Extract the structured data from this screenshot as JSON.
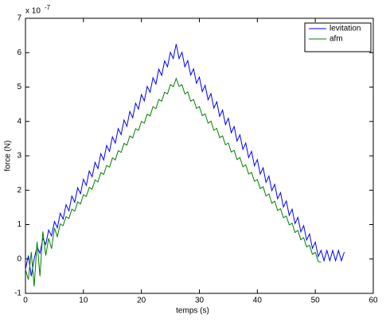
{
  "chart_data": {
    "type": "line",
    "xlabel": "temps (s)",
    "ylabel": "force (N)",
    "y_multiplier": "x 10",
    "y_multiplier_exponent": "-7",
    "xlim": [
      0,
      60
    ],
    "xticks": [
      0,
      10,
      20,
      30,
      40,
      50,
      60
    ],
    "ylim": [
      -1,
      7
    ],
    "yticks": [
      -1,
      0,
      1,
      2,
      3,
      4,
      5,
      6,
      7
    ],
    "grid": false,
    "legend": "top-right",
    "series": [
      {
        "name": "levitation",
        "color": "#0000ff",
        "x": [
          0,
          0.5,
          1,
          1.5,
          2,
          2.5,
          3,
          3.5,
          4,
          4.5,
          5,
          5.5,
          6,
          6.5,
          7,
          7.5,
          8,
          8.5,
          9,
          9.5,
          10,
          10.5,
          11,
          11.5,
          12,
          12.5,
          13,
          13.5,
          14,
          14.5,
          15,
          15.5,
          16,
          16.5,
          17,
          17.5,
          18,
          18.5,
          19,
          19.5,
          20,
          20.5,
          21,
          21.5,
          22,
          22.5,
          23,
          23.5,
          24,
          24.5,
          25,
          25.5,
          26,
          26.5,
          27,
          27.5,
          28,
          28.5,
          29,
          29.5,
          30,
          30.5,
          31,
          31.5,
          32,
          32.5,
          33,
          33.5,
          34,
          34.5,
          35,
          35.5,
          36,
          36.5,
          37,
          37.5,
          38,
          38.5,
          39,
          39.5,
          40,
          40.5,
          41,
          41.5,
          42,
          42.5,
          43,
          43.5,
          44,
          44.5,
          45,
          45.5,
          46,
          46.5,
          47,
          47.5,
          48,
          48.5,
          49,
          49.5,
          50,
          50.5,
          51,
          51.5,
          52,
          52.5,
          53,
          53.5,
          54,
          54.5,
          55
        ],
        "values": [
          -0.3,
          0.1,
          -0.5,
          0.0,
          0.35,
          0.17,
          0.6,
          0.42,
          0.84,
          0.67,
          1.09,
          0.91,
          1.33,
          1.16,
          1.58,
          1.4,
          1.83,
          1.65,
          2.07,
          1.9,
          2.32,
          2.14,
          2.56,
          2.39,
          2.81,
          2.63,
          3.06,
          2.88,
          3.3,
          3.13,
          3.55,
          3.37,
          3.79,
          3.62,
          4.04,
          3.86,
          4.29,
          4.11,
          4.53,
          4.36,
          4.78,
          4.6,
          5.02,
          4.85,
          5.27,
          5.09,
          5.52,
          5.34,
          5.76,
          5.59,
          6.01,
          5.83,
          6.25,
          5.83,
          6.01,
          5.59,
          5.77,
          5.35,
          5.53,
          5.11,
          5.29,
          4.87,
          5.05,
          4.63,
          4.81,
          4.39,
          4.57,
          4.15,
          4.33,
          3.91,
          4.09,
          3.67,
          3.85,
          3.43,
          3.61,
          3.19,
          3.37,
          2.95,
          3.13,
          2.71,
          2.89,
          2.47,
          2.65,
          2.23,
          2.41,
          1.99,
          2.17,
          1.75,
          1.93,
          1.51,
          1.69,
          1.27,
          1.45,
          1.03,
          1.21,
          0.79,
          0.97,
          0.55,
          0.73,
          0.31,
          0.49,
          0.07,
          0.25,
          -0.05,
          0.25,
          -0.05,
          0.25,
          -0.05,
          0.25,
          -0.05,
          0.2
        ]
      },
      {
        "name": "afm",
        "color": "#008000",
        "x": [
          0,
          0.5,
          1,
          1.5,
          2,
          2.5,
          3,
          3.5,
          4,
          4.5,
          5,
          5.5,
          6,
          6.5,
          7,
          7.5,
          8,
          8.5,
          9,
          9.5,
          10,
          10.5,
          11,
          11.5,
          12,
          12.5,
          13,
          13.5,
          14,
          14.5,
          15,
          15.5,
          16,
          16.5,
          17,
          17.5,
          18,
          18.5,
          19,
          19.5,
          20,
          20.5,
          21,
          21.5,
          22,
          22.5,
          23,
          23.5,
          24,
          24.5,
          25,
          25.5,
          26,
          26.5,
          27,
          27.5,
          28,
          28.5,
          29,
          29.5,
          30,
          30.5,
          31,
          31.5,
          32,
          32.5,
          33,
          33.5,
          34,
          34.5,
          35,
          35.5,
          36,
          36.5,
          37,
          37.5,
          38,
          38.5,
          39,
          39.5,
          40,
          40.5,
          41,
          41.5,
          42,
          42.5,
          43,
          43.5,
          44,
          44.5,
          45,
          45.5,
          46,
          46.5,
          47,
          47.5,
          48,
          48.5,
          49,
          49.5,
          50,
          50.5,
          51
        ],
        "values": [
          -0.3,
          -0.6,
          0.2,
          -0.8,
          0.5,
          -0.5,
          0.8,
          0.1,
          0.6,
          0.3,
          0.9,
          0.65,
          1.02,
          0.97,
          1.23,
          1.18,
          1.45,
          1.39,
          1.66,
          1.6,
          1.87,
          1.82,
          2.08,
          2.03,
          2.3,
          2.24,
          2.51,
          2.46,
          2.72,
          2.67,
          2.94,
          2.88,
          3.15,
          3.1,
          3.36,
          3.31,
          3.58,
          3.52,
          3.79,
          3.74,
          4.0,
          3.95,
          4.21,
          4.16,
          4.43,
          4.37,
          4.64,
          4.59,
          4.85,
          4.8,
          5.07,
          5.01,
          5.25,
          5.02,
          5.07,
          4.8,
          4.86,
          4.59,
          4.64,
          4.38,
          4.43,
          4.17,
          4.22,
          3.95,
          4.01,
          3.74,
          3.8,
          3.53,
          3.58,
          3.32,
          3.37,
          3.11,
          3.16,
          2.89,
          2.95,
          2.68,
          2.74,
          2.47,
          2.52,
          2.26,
          2.31,
          2.05,
          2.1,
          1.83,
          1.89,
          1.62,
          1.68,
          1.41,
          1.46,
          1.2,
          1.25,
          0.99,
          1.04,
          0.77,
          0.83,
          0.56,
          0.62,
          0.35,
          0.4,
          0.14,
          0.19,
          -0.07,
          -0.1
        ]
      }
    ]
  }
}
